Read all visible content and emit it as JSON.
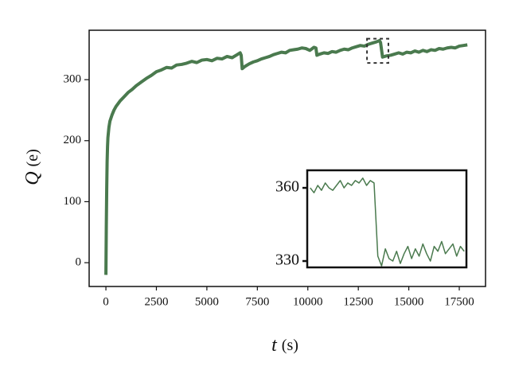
{
  "chart_data": [
    {
      "type": "line",
      "y_label": {
        "symbol": "Q",
        "unit": "(e)"
      },
      "x_label": {
        "symbol": "t",
        "unit": "(s)"
      },
      "color": "#4a7a4e",
      "xlim": [
        -830,
        18800
      ],
      "ylim": [
        -39,
        381
      ],
      "xticks": [
        0,
        2500,
        5000,
        7500,
        10000,
        12500,
        15000,
        17500
      ],
      "yticks": [
        0,
        100,
        200,
        300
      ],
      "x": [
        0,
        20,
        40,
        60,
        80,
        100,
        150,
        200,
        300,
        400,
        500,
        700,
        900,
        1100,
        1300,
        1500,
        1750,
        2000,
        2250,
        2500,
        2750,
        3000,
        3250,
        3500,
        3750,
        4000,
        4250,
        4500,
        4750,
        5000,
        5250,
        5500,
        5750,
        6000,
        6250,
        6500,
        6650,
        6700,
        6750,
        6900,
        7100,
        7300,
        7500,
        7700,
        7900,
        8100,
        8300,
        8500,
        8700,
        8900,
        9100,
        9300,
        9500,
        9700,
        9900,
        10100,
        10300,
        10400,
        10450,
        10600,
        10800,
        11000,
        11200,
        11400,
        11600,
        11800,
        12000,
        12200,
        12400,
        12600,
        12800,
        13000,
        13200,
        13400,
        13550,
        13600,
        13700,
        13900,
        14100,
        14300,
        14500,
        14700,
        14900,
        15100,
        15300,
        15500,
        15700,
        15900,
        16100,
        16300,
        16500,
        16700,
        16900,
        17100,
        17300,
        17500,
        17700,
        17900
      ],
      "values": [
        -20,
        60,
        120,
        165,
        190,
        205,
        222,
        232,
        242,
        250,
        256,
        265,
        272,
        279,
        284,
        290,
        296,
        302,
        307,
        313,
        316,
        320,
        319,
        324,
        325,
        327,
        330,
        328,
        332,
        333,
        331,
        335,
        334,
        338,
        336,
        341,
        344,
        340,
        318,
        322,
        326,
        329,
        331,
        334,
        336,
        338,
        341,
        343,
        345,
        344,
        348,
        349,
        350,
        352,
        351,
        348,
        353,
        352,
        340,
        342,
        344,
        343,
        346,
        345,
        348,
        350,
        349,
        352,
        354,
        356,
        355,
        358,
        360,
        362,
        364,
        361,
        337,
        339,
        340,
        342,
        344,
        342,
        345,
        344,
        347,
        345,
        348,
        346,
        349,
        348,
        351,
        350,
        352,
        353,
        352,
        355,
        356,
        357
      ]
    },
    {
      "type": "line",
      "color": "#4a7a4e",
      "xlim": [
        12930,
        13990
      ],
      "ylim": [
        327.4,
        367.2
      ],
      "yticks": [
        330,
        360
      ],
      "x": [
        12950,
        12975,
        13000,
        13025,
        13050,
        13075,
        13100,
        13125,
        13150,
        13175,
        13200,
        13225,
        13250,
        13275,
        13300,
        13325,
        13350,
        13375,
        13400,
        13425,
        13450,
        13475,
        13500,
        13525,
        13550,
        13575,
        13600,
        13625,
        13650,
        13675,
        13700,
        13725,
        13750,
        13775,
        13800,
        13825,
        13850,
        13875,
        13900,
        13925,
        13950,
        13975
      ],
      "values": [
        360,
        358,
        361,
        359,
        362,
        360,
        359,
        361,
        363,
        360,
        362,
        361,
        363,
        362,
        364,
        361,
        363,
        362,
        332,
        328,
        335,
        331,
        330,
        334,
        329,
        333,
        336,
        331,
        335,
        332,
        337,
        333,
        330,
        336,
        334,
        338,
        333,
        335,
        337,
        332,
        336,
        334
      ]
    }
  ]
}
